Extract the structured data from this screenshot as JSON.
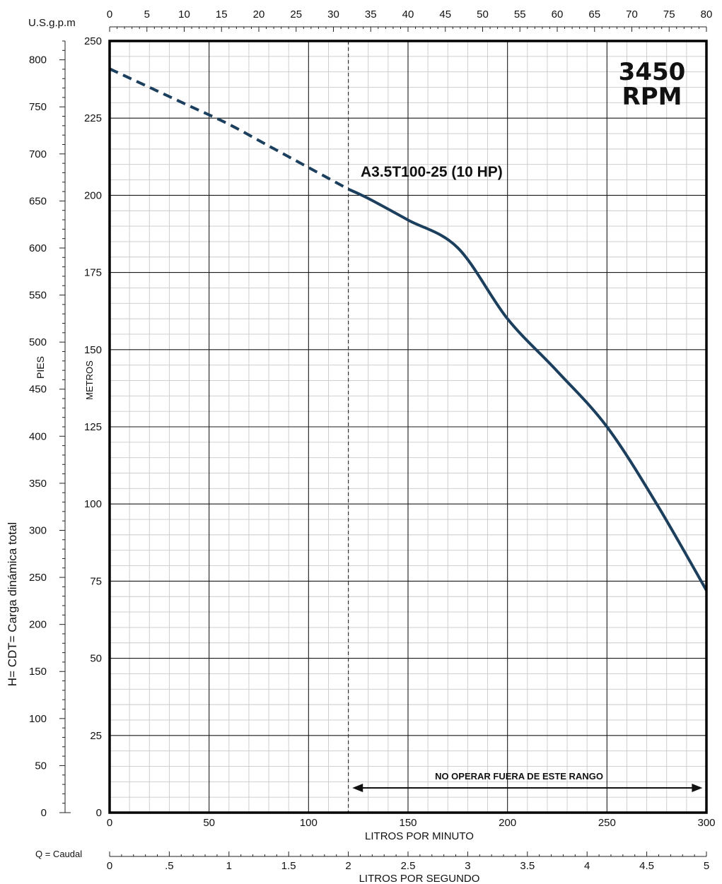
{
  "chart_data": {
    "type": "line",
    "model_label": "A3.5T100-25 (10 HP)",
    "rpm": {
      "line1": "3450",
      "line2": "RPM"
    },
    "operating_range_label": "NO OPERAR FUERA DE ESTE RANGO",
    "x_primary": {
      "label": "LITROS POR MINUTO",
      "range": [
        0,
        300
      ],
      "ticks": [
        "0",
        "50",
        "100",
        "150",
        "200",
        "250",
        "300"
      ]
    },
    "x_top": {
      "label": "U.S.g.p.m",
      "range": [
        0,
        80
      ],
      "ticks": [
        "0",
        "5",
        "10",
        "15",
        "20",
        "25",
        "30",
        "35",
        "40",
        "45",
        "50",
        "55",
        "60",
        "65",
        "70",
        "75",
        "80"
      ]
    },
    "x_bottom": {
      "prefix": "Q = Caudal",
      "label": "LITROS POR SEGUNDO",
      "range": [
        0,
        5
      ],
      "ticks": [
        "0",
        ".5",
        "1",
        "1.5",
        "2",
        "2.5",
        "3",
        "3.5",
        "4",
        "4.5",
        "5"
      ]
    },
    "y_primary": {
      "label": "METROS",
      "range": [
        0,
        250
      ],
      "ticks": [
        "0",
        "25",
        "50",
        "75",
        "100",
        "125",
        "150",
        "175",
        "200",
        "225",
        "250"
      ]
    },
    "y_feet": {
      "label": "PIES",
      "range": [
        0,
        820
      ],
      "ticks": [
        "0",
        "50",
        "100",
        "150",
        "200",
        "250",
        "300",
        "350",
        "400",
        "450",
        "500",
        "550",
        "600",
        "650",
        "700",
        "750",
        "800"
      ]
    },
    "y_outer_label": "H= CDT= Carga dinámica total",
    "min_flow_lpm": 120,
    "range_arrow_lpm": [
      122,
      298
    ],
    "series": [
      {
        "style": "dashed",
        "color": "#1c3f5e",
        "x": [
          0,
          20,
          40,
          60,
          80,
          100,
          120
        ],
        "y": [
          241,
          235,
          229,
          223,
          216,
          209,
          202
        ]
      },
      {
        "style": "solid",
        "color": "#1c3f5e",
        "x": [
          120,
          130,
          150,
          175,
          200,
          225,
          250,
          275,
          300
        ],
        "y": [
          202,
          199,
          192,
          183,
          160,
          143,
          125,
          100,
          72
        ]
      }
    ],
    "grid": true
  }
}
